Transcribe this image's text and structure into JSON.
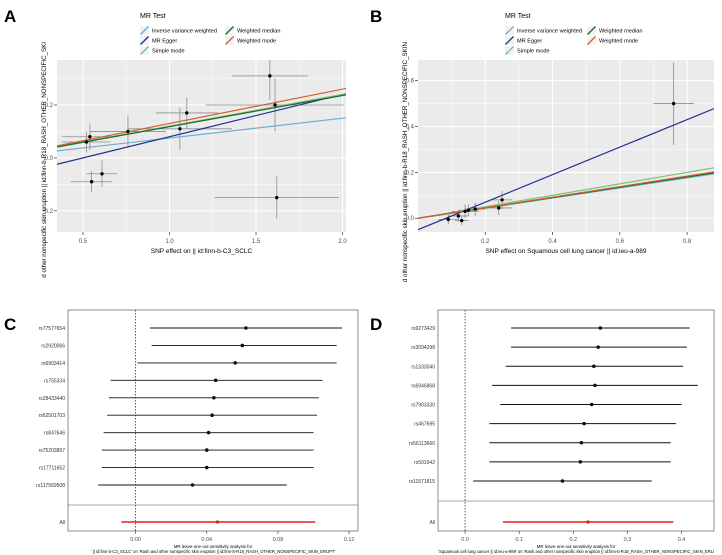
{
  "panel_labels": [
    "A",
    "B",
    "C",
    "D"
  ],
  "legend": {
    "title": "MR Test",
    "entries": [
      {
        "name": "Inverse variance weighted",
        "color": "#6baed6"
      },
      {
        "name": "MR Egger",
        "color": "#1f2f8f"
      },
      {
        "name": "Simple mode",
        "color": "#74c476"
      },
      {
        "name": "Weighted median",
        "color": "#1a6b2e"
      },
      {
        "name": "Weighted mode",
        "color": "#d7602c"
      }
    ]
  },
  "chart_data": [
    {
      "id": "A",
      "type": "scatter",
      "xlabel": "SNP effect on  || id:finn-b-C3_SCLC",
      "ylabel": "d other nonspecific skin eruption || id:finn-b-R18_RASH_OTHER_NONSPECIFIC_SKI",
      "xlim": [
        0.35,
        2.02
      ],
      "ylim": [
        -0.28,
        0.37
      ],
      "xticks": [
        0.5,
        1.0,
        1.5,
        2.0
      ],
      "xtick_labels": [
        "0.5",
        "1.0",
        "1.5",
        "2.0"
      ],
      "yticks": [
        -0.2,
        0.0,
        0.2
      ],
      "ytick_labels": [
        "-0.2",
        "0.0",
        "0.2"
      ],
      "points": [
        {
          "x": 0.52,
          "y": 0.06,
          "xerr": 0.14,
          "yerr": 0.04
        },
        {
          "x": 0.54,
          "y": 0.08,
          "xerr": 0.16,
          "yerr": 0.05
        },
        {
          "x": 0.55,
          "y": -0.09,
          "xerr": 0.12,
          "yerr": 0.04
        },
        {
          "x": 0.61,
          "y": -0.06,
          "xerr": 0.09,
          "yerr": 0.05
        },
        {
          "x": 0.76,
          "y": 0.1,
          "xerr": 0.22,
          "yerr": 0.06
        },
        {
          "x": 1.06,
          "y": 0.11,
          "xerr": 0.3,
          "yerr": 0.08
        },
        {
          "x": 1.1,
          "y": 0.17,
          "xerr": 0.18,
          "yerr": 0.06
        },
        {
          "x": 1.58,
          "y": 0.31,
          "xerr": 0.22,
          "yerr": 0.09
        },
        {
          "x": 1.61,
          "y": 0.2,
          "xerr": 0.4,
          "yerr": 0.1
        },
        {
          "x": 1.62,
          "y": -0.15,
          "xerr": 0.36,
          "yerr": 0.08
        }
      ],
      "lines": [
        {
          "method": "Inverse variance weighted",
          "intercept": 0.0,
          "slope": 0.075
        },
        {
          "method": "MR Egger",
          "intercept": -0.08,
          "slope": 0.16
        },
        {
          "method": "Simple mode",
          "intercept": 0.0,
          "slope": 0.12
        },
        {
          "method": "Weighted median",
          "intercept": 0.0,
          "slope": 0.118
        },
        {
          "method": "Weighted mode",
          "intercept": 0.0,
          "slope": 0.13
        }
      ]
    },
    {
      "id": "B",
      "type": "scatter",
      "xlabel": "SNP effect on Squamous cell lung cancer || id:ieu-a-989",
      "ylabel": "d other nonspecific skin eruption || id:finn-b-R18_RASH_OTHER_NONSPECIFIC_SKIN",
      "xlim": [
        0.0,
        0.88
      ],
      "ylim": [
        -0.06,
        0.69
      ],
      "xticks": [
        0.2,
        0.4,
        0.6,
        0.8
      ],
      "xtick_labels": [
        "0.2",
        "0.4",
        "0.6",
        "0.8"
      ],
      "yticks": [
        0.0,
        0.2,
        0.4,
        0.6
      ],
      "ytick_labels": [
        "0.0",
        "0.2",
        "0.4",
        "0.6"
      ],
      "points": [
        {
          "x": 0.09,
          "y": -0.005,
          "xerr": 0.03,
          "yerr": 0.02
        },
        {
          "x": 0.12,
          "y": 0.01,
          "xerr": 0.03,
          "yerr": 0.025
        },
        {
          "x": 0.13,
          "y": -0.01,
          "xerr": 0.02,
          "yerr": 0.02
        },
        {
          "x": 0.14,
          "y": 0.03,
          "xerr": 0.04,
          "yerr": 0.03
        },
        {
          "x": 0.15,
          "y": 0.035,
          "xerr": 0.03,
          "yerr": 0.025
        },
        {
          "x": 0.17,
          "y": 0.04,
          "xerr": 0.03,
          "yerr": 0.03
        },
        {
          "x": 0.24,
          "y": 0.045,
          "xerr": 0.04,
          "yerr": 0.03
        },
        {
          "x": 0.25,
          "y": 0.08,
          "xerr": 0.03,
          "yerr": 0.04
        },
        {
          "x": 0.76,
          "y": 0.5,
          "xerr": 0.06,
          "yerr": 0.18
        }
      ],
      "lines": [
        {
          "method": "Inverse variance weighted",
          "intercept": 0.0,
          "slope": 0.22
        },
        {
          "method": "MR Egger",
          "intercept": -0.05,
          "slope": 0.6
        },
        {
          "method": "Simple mode",
          "intercept": 0.0,
          "slope": 0.25
        },
        {
          "method": "Weighted median",
          "intercept": 0.0,
          "slope": 0.225
        },
        {
          "method": "Weighted mode",
          "intercept": 0.0,
          "slope": 0.23
        }
      ]
    },
    {
      "id": "C",
      "type": "forest",
      "xlabel_line1": "MR leave-one-out sensitivity analysis for",
      "xlabel_line2": "' || id:finn-b-C3_SCLC' on 'Rash and other nonspecific skin eruption || id:finn-b-R18_RASH_OTHER_NONSPECIFIC_SKIN_ERUPT'",
      "xlim": [
        -0.038,
        0.125
      ],
      "xticks": [
        0.0,
        0.04,
        0.08,
        0.12
      ],
      "xtick_labels": [
        "0.00",
        "0.04",
        "0.08",
        "0.12"
      ],
      "snps": [
        {
          "label": "rs77577654",
          "est": 0.062,
          "lo": 0.008,
          "hi": 0.116
        },
        {
          "label": "rs2920066",
          "est": 0.06,
          "lo": 0.009,
          "hi": 0.113
        },
        {
          "label": "rs6903414",
          "est": 0.056,
          "lo": 0.001,
          "hi": 0.113
        },
        {
          "label": "rs755334",
          "est": 0.045,
          "lo": -0.014,
          "hi": 0.105
        },
        {
          "label": "rs28433440",
          "est": 0.044,
          "lo": -0.015,
          "hi": 0.103
        },
        {
          "label": "rs62501703",
          "est": 0.043,
          "lo": -0.016,
          "hi": 0.102
        },
        {
          "label": "rs847646",
          "est": 0.041,
          "lo": -0.018,
          "hi": 0.1
        },
        {
          "label": "rs75203897",
          "est": 0.04,
          "lo": -0.019,
          "hi": 0.1
        },
        {
          "label": "rs17711652",
          "est": 0.04,
          "lo": -0.019,
          "hi": 0.1
        },
        {
          "label": "rs117569508",
          "est": 0.032,
          "lo": -0.021,
          "hi": 0.085
        }
      ],
      "overall": {
        "label": "All",
        "est": 0.046,
        "lo": -0.008,
        "hi": 0.101
      }
    },
    {
      "id": "D",
      "type": "forest",
      "xlabel_line1": "MR leave-one-out sensitivity analysis for",
      "xlabel_line2": "'Squamous cell lung cancer || id:ieu-a-989' on 'Rash and other nonspecific skin eruption || id:finn-b-R18_RASH_OTHER_NONSPECIFIC_SKIN_ERU",
      "xlim": [
        -0.05,
        0.46
      ],
      "xticks": [
        0.0,
        0.1,
        0.2,
        0.3,
        0.4
      ],
      "xtick_labels": [
        "0.0",
        "0.1",
        "0.2",
        "0.3",
        "0.4"
      ],
      "snps": [
        {
          "label": "rs9273429",
          "est": 0.25,
          "lo": 0.085,
          "hi": 0.415
        },
        {
          "label": "rs3094298",
          "est": 0.246,
          "lo": 0.085,
          "hi": 0.41
        },
        {
          "label": "rs1333040",
          "est": 0.238,
          "lo": 0.075,
          "hi": 0.403
        },
        {
          "label": "rs6946868",
          "est": 0.24,
          "lo": 0.05,
          "hi": 0.43
        },
        {
          "label": "rs7903330",
          "est": 0.234,
          "lo": 0.065,
          "hi": 0.4
        },
        {
          "label": "rs467695",
          "est": 0.22,
          "lo": 0.045,
          "hi": 0.39
        },
        {
          "label": "rs56113660",
          "est": 0.215,
          "lo": 0.045,
          "hi": 0.38
        },
        {
          "label": "rs501942",
          "est": 0.213,
          "lo": 0.045,
          "hi": 0.38
        },
        {
          "label": "rs11571815",
          "est": 0.18,
          "lo": 0.015,
          "hi": 0.345
        }
      ],
      "overall": {
        "label": "All",
        "est": 0.227,
        "lo": 0.07,
        "hi": 0.385
      }
    }
  ]
}
